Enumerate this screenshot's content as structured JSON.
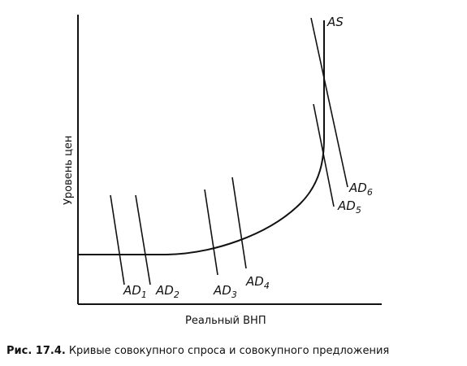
{
  "axes": {
    "x_label": "Реальный ВНП",
    "y_label": "Уровень цен"
  },
  "curves": {
    "as_label": "AS",
    "ad": [
      {
        "main": "AD",
        "sub": "1"
      },
      {
        "main": "AD",
        "sub": "2"
      },
      {
        "main": "AD",
        "sub": "3"
      },
      {
        "main": "AD",
        "sub": "4"
      },
      {
        "main": "AD",
        "sub": "5"
      },
      {
        "main": "AD",
        "sub": "6"
      }
    ]
  },
  "caption": {
    "number": "Рис. 17.4.",
    "text": "Кривые совокупного спроса и совокупного предложения"
  }
}
